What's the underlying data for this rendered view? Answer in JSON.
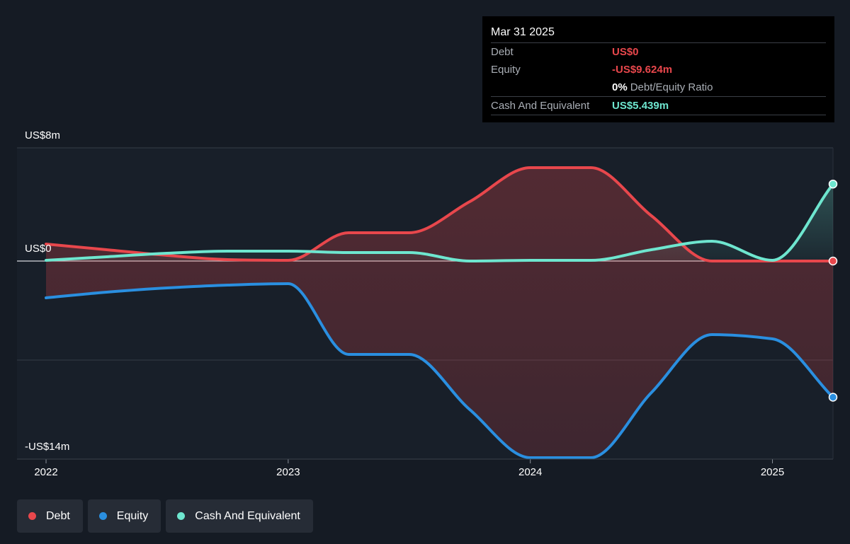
{
  "tooltip": {
    "date": "Mar 31 2025",
    "rows": [
      {
        "label": "Debt",
        "value": "US$0"
      },
      {
        "label": "Equity",
        "value": "-US$9.624m"
      },
      {
        "ratio_pct": "0%",
        "ratio_label": "Debt/Equity Ratio"
      },
      {
        "label": "Cash And Equivalent",
        "value": "US$5.439m"
      }
    ]
  },
  "colors": {
    "debt": "#e8474c",
    "equity": "#2a8fe0",
    "cash": "#6ee6cf",
    "background": "#151b24"
  },
  "legend": [
    {
      "label": "Debt",
      "color": "#e8474c"
    },
    {
      "label": "Equity",
      "color": "#2a8fe0"
    },
    {
      "label": "Cash And Equivalent",
      "color": "#6ee6cf"
    }
  ],
  "chart_data": {
    "type": "line",
    "y_axis_labels": [
      "US$8m",
      "US$0",
      "-US$14m"
    ],
    "ylim": [
      -14,
      8
    ],
    "x_ticks": [
      "2022",
      "2023",
      "2024",
      "2025"
    ],
    "x_tick_values": [
      2022,
      2023,
      2024,
      2025
    ],
    "xlim": [
      2021.88,
      2025.25
    ],
    "grid": true,
    "legend_position": "bottom-left",
    "x": [
      2022.0,
      2022.25,
      2022.5,
      2022.75,
      2023.0,
      2023.25,
      2023.5,
      2023.75,
      2024.0,
      2024.25,
      2024.5,
      2024.75,
      2025.0,
      2025.25
    ],
    "series": [
      {
        "name": "Debt",
        "values": [
          1.2,
          0.8,
          0.4,
          0.1,
          0.05,
          2.0,
          2.0,
          4.2,
          6.6,
          6.6,
          3.2,
          0.0,
          0.0,
          0.0
        ]
      },
      {
        "name": "Equity",
        "values": [
          -2.6,
          -2.2,
          -1.9,
          -1.7,
          -1.6,
          -6.6,
          -6.6,
          -10.5,
          -13.9,
          -13.9,
          -9.3,
          -5.2,
          -5.5,
          -9.624
        ]
      },
      {
        "name": "Cash And Equivalent",
        "values": [
          0.05,
          0.3,
          0.55,
          0.7,
          0.7,
          0.6,
          0.6,
          0.0,
          0.05,
          0.05,
          0.8,
          1.4,
          0.05,
          5.439
        ]
      }
    ]
  }
}
